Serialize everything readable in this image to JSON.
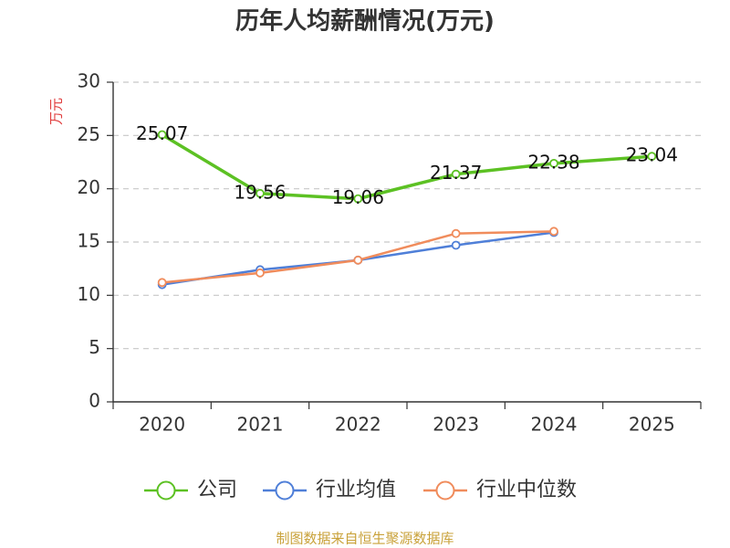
{
  "footer": "制图数据来自恒生聚源数据库",
  "colors": {
    "axis": "#333333",
    "grid": "#c8c8c8",
    "unit_label": "#e03c3c",
    "footer": "#c9a23a"
  },
  "chart_data": {
    "type": "line",
    "title": "历年人均薪酬情况(万元)",
    "xlabel": "",
    "ylabel": "万元",
    "categories": [
      "2020",
      "2021",
      "2022",
      "2023",
      "2024",
      "2025"
    ],
    "ylim": [
      0,
      30
    ],
    "yticks": [
      0,
      5,
      10,
      15,
      20,
      25,
      30
    ],
    "grid": true,
    "legend_position": "bottom",
    "series": [
      {
        "name": "公司",
        "color": "#5cc123",
        "values": [
          25.07,
          19.56,
          19.06,
          21.37,
          22.38,
          23.04
        ],
        "show_labels": true
      },
      {
        "name": "行业均值",
        "color": "#4f7fd8",
        "values": [
          11.0,
          12.4,
          13.3,
          14.7,
          15.9,
          null
        ],
        "show_labels": false
      },
      {
        "name": "行业中位数",
        "color": "#f08c5c",
        "values": [
          11.2,
          12.1,
          13.3,
          15.8,
          16.0,
          null
        ],
        "show_labels": false
      }
    ]
  }
}
